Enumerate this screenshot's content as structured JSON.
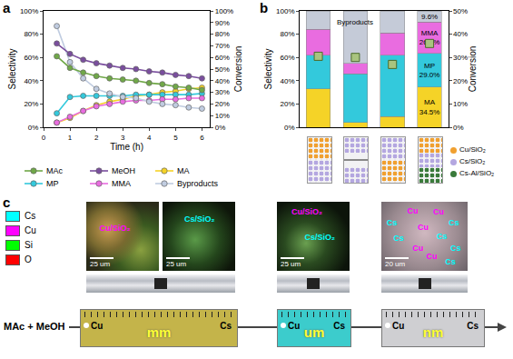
{
  "panel_labels": [
    "a",
    "b",
    "c"
  ],
  "chart_data": [
    {
      "type": "line",
      "x": [
        0.5,
        1,
        1.5,
        2,
        2.5,
        3,
        3.5,
        4,
        4.5,
        5,
        5.5,
        6
      ],
      "xlim": [
        0,
        6.3
      ],
      "xticks": [
        0,
        1,
        2,
        3,
        4,
        5,
        6
      ],
      "x_label": "Time (h)",
      "y_label": "Selectivity",
      "y2_label": "Conversion",
      "ylim": [
        0,
        100
      ],
      "yticks": [
        {
          "value": 0,
          "label": "0%"
        },
        {
          "value": 20,
          "label": "20%"
        },
        {
          "value": 40,
          "label": "40%"
        },
        {
          "value": 60,
          "label": "60%"
        },
        {
          "value": 80,
          "label": "80%"
        },
        {
          "value": 100,
          "label": "100%"
        }
      ],
      "y2lim": [
        0,
        100
      ],
      "y2ticks": [
        {
          "value": 0,
          "label": "0%"
        },
        {
          "value": 10,
          "label": "10%"
        },
        {
          "value": 20,
          "label": "20%"
        },
        {
          "value": 30,
          "label": "30%"
        },
        {
          "value": 40,
          "label": "40%"
        },
        {
          "value": 50,
          "label": "50%"
        },
        {
          "value": 60,
          "label": "60%"
        },
        {
          "value": 70,
          "label": "70%"
        },
        {
          "value": 80,
          "label": "80%"
        },
        {
          "value": 90,
          "label": "90%"
        },
        {
          "value": 100,
          "label": "100%"
        }
      ],
      "grid": false,
      "legend": "bottom",
      "marker": "circle",
      "series": [
        {
          "name": "MAc",
          "color": "#70a848",
          "axis": "y2",
          "values": [
            61,
            51,
            47,
            44,
            42,
            41,
            40,
            38,
            37,
            35,
            34,
            32
          ]
        },
        {
          "name": "MeOH",
          "color": "#7a4e9e",
          "axis": "y2",
          "values": [
            72,
            63,
            58,
            55,
            53,
            51,
            50,
            48,
            47,
            45,
            44,
            42
          ]
        },
        {
          "name": "MA",
          "color": "#f5d327",
          "values": [
            4,
            8,
            14,
            19,
            22,
            24,
            27,
            28,
            30,
            31,
            33,
            34
          ]
        },
        {
          "name": "MP",
          "color": "#33c9dc",
          "values": [
            12,
            26,
            27,
            27,
            27,
            27,
            28,
            28,
            28,
            28,
            28,
            29
          ]
        },
        {
          "name": "MMA",
          "color": "#e96ce0",
          "values": [
            4,
            9,
            14,
            18,
            20,
            22,
            23,
            23,
            24,
            24,
            25,
            25
          ]
        },
        {
          "name": "Byproducts",
          "color": "#c0cce0",
          "values": [
            87,
            56,
            42,
            33,
            29,
            26,
            25,
            22,
            20,
            19,
            17,
            16
          ]
        }
      ]
    },
    {
      "type": "bar",
      "stacked": true,
      "data_labels": true,
      "categories": [
        null,
        null,
        null,
        null
      ],
      "y_label": "Selectivity",
      "y2_label": "Conversion",
      "ylim": [
        0,
        100
      ],
      "yticks": [
        {
          "value": 0,
          "label": "0%"
        },
        {
          "value": 20,
          "label": "20%"
        },
        {
          "value": 40,
          "label": "40%"
        },
        {
          "value": 60,
          "label": "60%"
        },
        {
          "value": 80,
          "label": "80%"
        },
        {
          "value": 100,
          "label": "100%"
        }
      ],
      "y2lim": [
        0,
        50
      ],
      "y2ticks": [
        {
          "value": 0,
          "label": "0%"
        },
        {
          "value": 10,
          "label": "10%"
        },
        {
          "value": 20,
          "label": "20%"
        },
        {
          "value": 30,
          "label": "30%"
        },
        {
          "value": 40,
          "label": "40%"
        },
        {
          "value": 50,
          "label": "50%"
        }
      ],
      "grid": false,
      "series": [
        {
          "name": "MA",
          "color": "#f5d327",
          "values": [
            33,
            4,
            9,
            34.5
          ],
          "value_labels": [
            null,
            null,
            null,
            "MA 34.5%"
          ]
        },
        {
          "name": "MP",
          "color": "#33c9dc",
          "values": [
            29,
            42,
            53,
            29.0
          ],
          "value_labels": [
            null,
            null,
            null,
            "MP 29.0%"
          ]
        },
        {
          "name": "MMA",
          "color": "#e96ce0",
          "values": [
            22,
            9,
            19,
            26.9
          ],
          "value_labels": [
            null,
            null,
            null,
            "MMA 26.9%"
          ]
        },
        {
          "name": "Byproducts",
          "color": "#c5cbd8",
          "values": [
            16,
            45,
            19,
            9.6
          ],
          "value_labels": [
            null,
            null,
            null,
            "9.6%"
          ]
        },
        {
          "type": "scatter",
          "axis": "y2",
          "marker": "square",
          "color": "#a9c47f",
          "values": [
            30.5,
            30,
            27,
            36
          ]
        }
      ],
      "annotations": [
        {
          "text": "Byproducts",
          "category_index": 1,
          "y": 90
        }
      ],
      "catalysts": [
        {
          "text": "Cu/SiO₂",
          "color": "#f0a030"
        },
        {
          "text": "Cs/SiO₂",
          "color": "#b4a7e0"
        },
        {
          "text": "Cs-Al/SiO₂",
          "color": "#3a7a3a"
        }
      ]
    }
  ],
  "panel_c": {
    "legend": [
      {
        "text": "Cs",
        "color": "#00ffff"
      },
      {
        "text": "Cu",
        "color": "#ff00ff"
      },
      {
        "text": "Si",
        "color": "#00ff00"
      },
      {
        "text": "O",
        "color": "#ff0000"
      }
    ],
    "images": [
      {
        "labels": [
          "Cu/SiO₂"
        ],
        "scale": "25 um"
      },
      {
        "labels": [
          "Cs/SiO₂"
        ],
        "scale": "25 um"
      },
      {
        "labels": [
          "Cu/SiO₂",
          "Cs/SiO₂"
        ],
        "scale": "25 um"
      },
      {
        "labels": [
          "Cu",
          "Cu",
          "Cs",
          "Cs",
          "Cu",
          "Cs",
          "Cs",
          "Cu",
          "Cs",
          "Cu",
          "Cs"
        ],
        "scale": "20 um"
      }
    ],
    "feed": "MAc + MeOH",
    "reactors": [
      {
        "left": "Cu",
        "middle": "mm",
        "right": "Cs"
      },
      {
        "left": "Cu",
        "middle": "um",
        "right": "Cs"
      },
      {
        "left": "Cu",
        "middle": "nm",
        "right": "Cs"
      }
    ]
  }
}
